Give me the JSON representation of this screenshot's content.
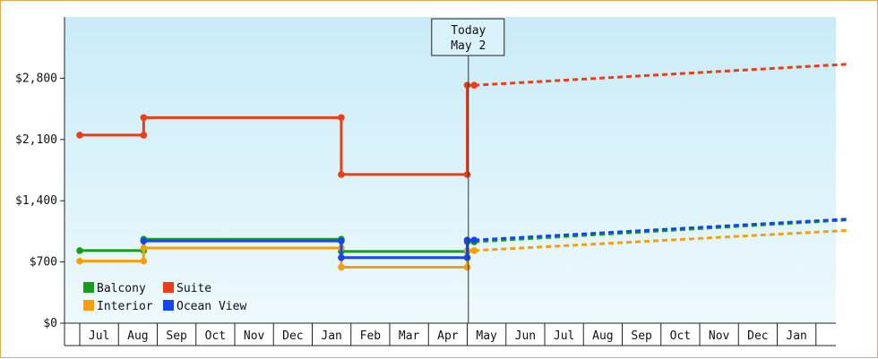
{
  "chart_data": {
    "type": "line",
    "title": "",
    "xlabel": "",
    "ylabel": "",
    "ylim": [
      0,
      3500
    ],
    "grid": false,
    "legend_position": "bottom-left",
    "y_ticks": [
      "$0",
      "$700",
      "$1,400",
      "$2,100",
      "$2,800"
    ],
    "months": [
      "Jul",
      "Aug",
      "Sep",
      "Oct",
      "Nov",
      "Dec",
      "Jan",
      "Feb",
      "Mar",
      "Apr",
      "May",
      "Jun",
      "Jul",
      "Aug",
      "Sep",
      "Oct",
      "Nov",
      "Dec",
      "Jan"
    ],
    "today_marker": {
      "line1": "Today",
      "line2": "May 2",
      "month_index": 10.03
    },
    "series": [
      {
        "name": "Suite",
        "color": "#f03c14",
        "history": [
          [
            0.0,
            2150
          ],
          [
            1.65,
            2150
          ],
          [
            1.65,
            2350
          ],
          [
            6.75,
            2350
          ],
          [
            6.75,
            1700
          ],
          [
            10.0,
            1700
          ],
          [
            10.0,
            2720
          ],
          [
            10.18,
            2720
          ]
        ],
        "forecast": [
          [
            10.18,
            2720
          ],
          [
            19.8,
            2960
          ]
        ]
      },
      {
        "name": "Balcony",
        "color": "#14a014",
        "history": [
          [
            0.0,
            830
          ],
          [
            1.65,
            830
          ],
          [
            1.65,
            960
          ],
          [
            6.75,
            960
          ],
          [
            6.75,
            820
          ],
          [
            10.0,
            820
          ],
          [
            10.0,
            930
          ],
          [
            10.18,
            930
          ]
        ],
        "forecast": [
          [
            10.18,
            930
          ],
          [
            19.8,
            1180
          ]
        ]
      },
      {
        "name": "Interior",
        "color": "#f5a00a",
        "history": [
          [
            0.0,
            710
          ],
          [
            1.65,
            710
          ],
          [
            1.65,
            860
          ],
          [
            6.75,
            860
          ],
          [
            6.75,
            640
          ],
          [
            10.0,
            640
          ],
          [
            10.0,
            830
          ],
          [
            10.18,
            830
          ]
        ],
        "forecast": [
          [
            10.18,
            830
          ],
          [
            19.8,
            1060
          ]
        ]
      },
      {
        "name": "Ocean View",
        "color": "#1446f0",
        "history": [
          [
            1.65,
            940
          ],
          [
            6.75,
            940
          ],
          [
            6.75,
            750
          ],
          [
            10.0,
            750
          ],
          [
            10.0,
            950
          ],
          [
            10.18,
            950
          ]
        ],
        "forecast": [
          [
            10.18,
            950
          ],
          [
            19.8,
            1190
          ]
        ]
      }
    ],
    "legend": [
      {
        "label": "Balcony",
        "color": "#14a014"
      },
      {
        "label": "Suite",
        "color": "#f03c14"
      },
      {
        "label": "Interior",
        "color": "#f5a00a"
      },
      {
        "label": "Ocean View",
        "color": "#1446f0"
      }
    ]
  }
}
